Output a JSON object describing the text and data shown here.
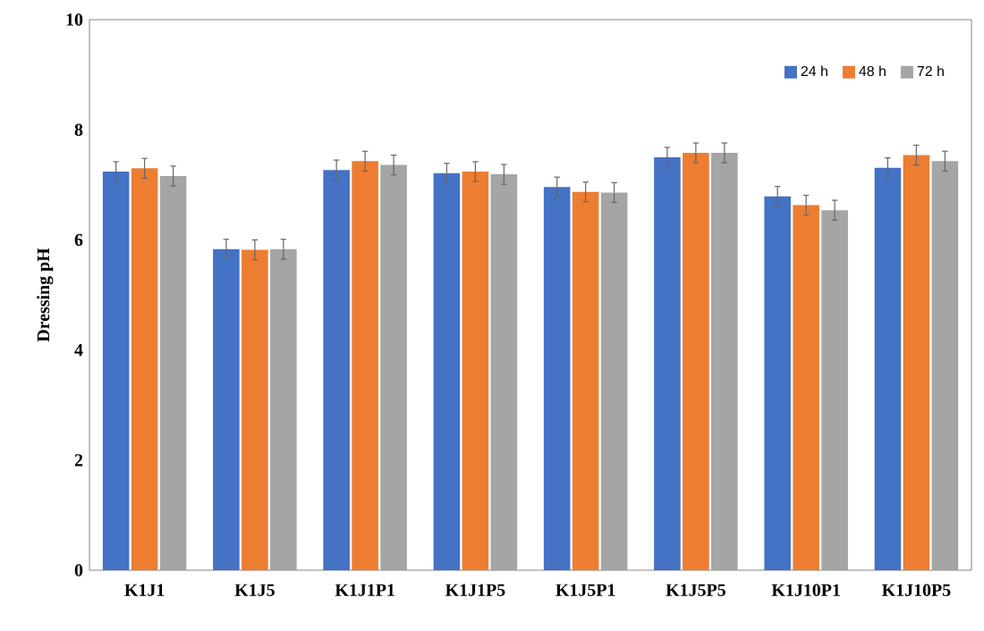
{
  "chart_data": {
    "type": "bar",
    "ylabel": "Dressing pH",
    "categories": [
      "K1J1",
      "K1J5",
      "K1J1P1",
      "K1J1P5",
      "K1J5P1",
      "K1J5P5",
      "K1J10P1",
      "K1J10P5"
    ],
    "series": [
      {
        "name": "24 h",
        "color": "#4472c4",
        "values": [
          7.24,
          5.83,
          7.27,
          7.21,
          6.96,
          7.5,
          6.79,
          7.31
        ],
        "errors": [
          0.18,
          0.18,
          0.18,
          0.18,
          0.18,
          0.18,
          0.18,
          0.18
        ]
      },
      {
        "name": "48 h",
        "color": "#ed7d31",
        "values": [
          7.3,
          5.82,
          7.43,
          7.24,
          6.87,
          7.58,
          6.63,
          7.54
        ],
        "errors": [
          0.18,
          0.18,
          0.18,
          0.18,
          0.18,
          0.18,
          0.18,
          0.18
        ]
      },
      {
        "name": "72 h",
        "color": "#a5a5a5",
        "values": [
          7.16,
          5.83,
          7.36,
          7.19,
          6.86,
          7.58,
          6.54,
          7.43
        ],
        "errors": [
          0.18,
          0.18,
          0.18,
          0.18,
          0.18,
          0.18,
          0.18,
          0.18
        ]
      }
    ],
    "ylim": [
      0,
      10
    ],
    "yticks": [
      0,
      2,
      4,
      6,
      8,
      10
    ],
    "grid": false,
    "legend": "top right"
  }
}
